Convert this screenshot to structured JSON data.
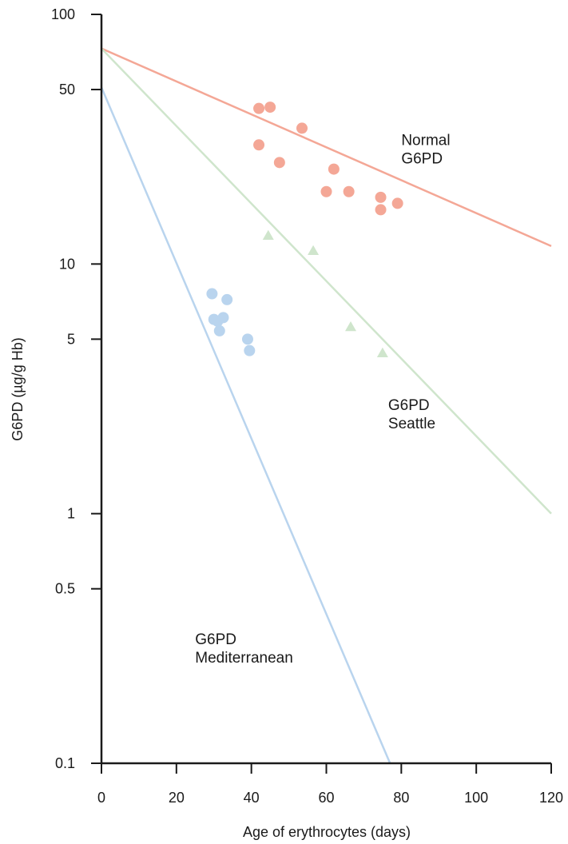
{
  "chart_data": {
    "type": "scatter",
    "title": "",
    "xlabel": "Age of erythrocytes (days)",
    "ylabel": "G6PD (µg/g Hb)",
    "xlim": [
      0,
      120
    ],
    "ylim": [
      0.1,
      100
    ],
    "yscale": "log",
    "x_ticks": [
      0,
      20,
      40,
      60,
      80,
      100,
      120
    ],
    "x_tick_labels": [
      "0",
      "20",
      "40",
      "60",
      "80",
      "100",
      "120"
    ],
    "y_ticks": [
      0.1,
      0.5,
      1,
      5,
      10,
      50,
      100
    ],
    "y_tick_labels": [
      "0.1",
      "0.5",
      "1",
      "5",
      "10",
      "50",
      "100"
    ],
    "grid": false,
    "series": [
      {
        "name": "Normal G6PD",
        "label_lines": [
          "Normal",
          "G6PD"
        ],
        "color": "#f4a796",
        "marker": "circle",
        "points": [
          [
            42,
            42
          ],
          [
            45,
            42.5
          ],
          [
            42,
            30
          ],
          [
            47.5,
            25.5
          ],
          [
            53.5,
            35
          ],
          [
            62,
            24
          ],
          [
            60,
            19.5
          ],
          [
            66,
            19.5
          ],
          [
            74.5,
            18.5
          ],
          [
            74.5,
            16.5
          ],
          [
            79,
            17.5
          ]
        ],
        "fit_line": [
          [
            0,
            73
          ],
          [
            120,
            11.8
          ]
        ]
      },
      {
        "name": "G6PD Seattle",
        "label_lines": [
          "G6PD",
          "Seattle"
        ],
        "color": "#cfe5cc",
        "marker": "triangle",
        "points": [
          [
            44.5,
            13
          ],
          [
            56.5,
            11.3
          ],
          [
            66.5,
            5.6
          ],
          [
            75,
            4.4
          ]
        ],
        "fit_line": [
          [
            0,
            73
          ],
          [
            120,
            1.0
          ]
        ]
      },
      {
        "name": "G6PD Mediterranean",
        "label_lines": [
          "G6PD",
          "Mediterranean"
        ],
        "color": "#b9d4ee",
        "marker": "circle",
        "points": [
          [
            29.5,
            7.6
          ],
          [
            33.5,
            7.2
          ],
          [
            30,
            6.0
          ],
          [
            31,
            5.9
          ],
          [
            32.5,
            6.1
          ],
          [
            31.5,
            5.4
          ],
          [
            39,
            5.0
          ],
          [
            39.5,
            4.5
          ]
        ],
        "fit_line": [
          [
            0,
            51
          ],
          [
            77,
            0.1
          ]
        ]
      }
    ]
  }
}
